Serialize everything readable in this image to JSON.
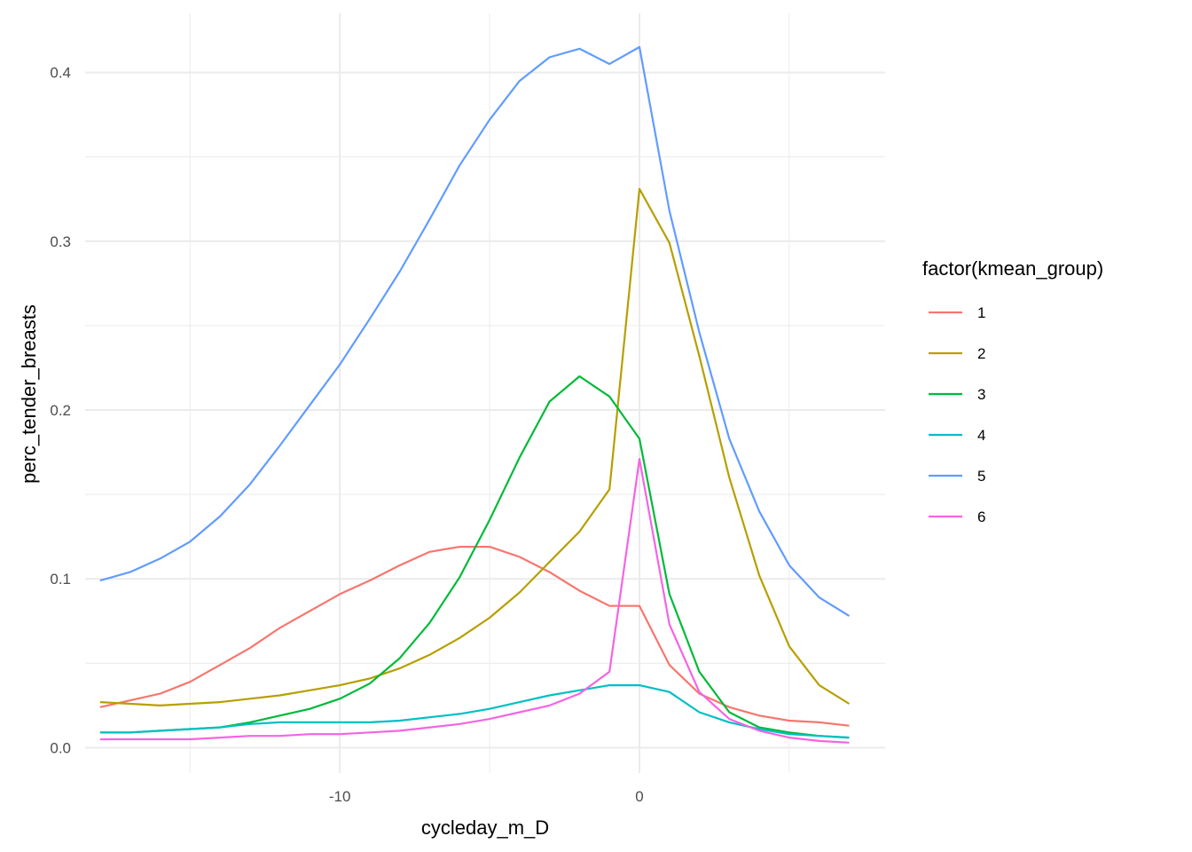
{
  "chart_data": {
    "type": "line",
    "title": "",
    "xlabel": "cycleday_m_D",
    "ylabel": "perc_tender_breasts",
    "xlim": [
      -18.5,
      8.2
    ],
    "ylim": [
      -0.015,
      0.435
    ],
    "x_ticks": [
      -10,
      0
    ],
    "x_tick_labels": [
      "-10",
      "0"
    ],
    "x_minor_ticks": [
      -15,
      -5,
      5
    ],
    "y_ticks": [
      0.0,
      0.1,
      0.2,
      0.3,
      0.4
    ],
    "y_tick_labels": [
      "0.0",
      "0.1",
      "0.2",
      "0.3",
      "0.4"
    ],
    "y_minor_ticks": [
      0.05,
      0.15,
      0.25,
      0.35
    ],
    "grid": true,
    "legend": {
      "title": "factor(kmean_group)",
      "position": "right"
    },
    "x": [
      -18,
      -17,
      -16,
      -15,
      -14,
      -13,
      -12,
      -11,
      -10,
      -9,
      -8,
      -7,
      -6,
      -5,
      -4,
      -3,
      -2,
      -1,
      0,
      1,
      2,
      3,
      4,
      5,
      6,
      7
    ],
    "series": [
      {
        "name": "1",
        "color": "#F8766D",
        "values": [
          0.024,
          0.028,
          0.032,
          0.039,
          0.049,
          0.059,
          0.071,
          0.081,
          0.091,
          0.099,
          0.108,
          0.116,
          0.119,
          0.119,
          0.113,
          0.104,
          0.093,
          0.084,
          0.084,
          0.049,
          0.032,
          0.024,
          0.019,
          0.016,
          0.015,
          0.013
        ]
      },
      {
        "name": "2",
        "color": "#B79F00",
        "values": [
          0.027,
          0.026,
          0.025,
          0.026,
          0.027,
          0.029,
          0.031,
          0.034,
          0.037,
          0.041,
          0.047,
          0.055,
          0.065,
          0.077,
          0.092,
          0.11,
          0.128,
          0.153,
          0.331,
          0.299,
          0.232,
          0.16,
          0.102,
          0.06,
          0.037,
          0.026
        ]
      },
      {
        "name": "3",
        "color": "#00BA38",
        "values": [
          0.009,
          0.009,
          0.01,
          0.011,
          0.012,
          0.015,
          0.019,
          0.023,
          0.029,
          0.038,
          0.053,
          0.074,
          0.101,
          0.135,
          0.172,
          0.205,
          0.22,
          0.208,
          0.183,
          0.091,
          0.045,
          0.021,
          0.012,
          0.009,
          0.007,
          0.006
        ]
      },
      {
        "name": "4",
        "color": "#00BFC4",
        "values": [
          0.009,
          0.009,
          0.01,
          0.011,
          0.012,
          0.014,
          0.015,
          0.015,
          0.015,
          0.015,
          0.016,
          0.018,
          0.02,
          0.023,
          0.027,
          0.031,
          0.034,
          0.037,
          0.037,
          0.033,
          0.021,
          0.015,
          0.011,
          0.008,
          0.007,
          0.006
        ]
      },
      {
        "name": "5",
        "color": "#619CFF",
        "values": [
          0.099,
          0.104,
          0.112,
          0.122,
          0.137,
          0.156,
          0.179,
          0.203,
          0.227,
          0.254,
          0.282,
          0.313,
          0.345,
          0.372,
          0.395,
          0.409,
          0.414,
          0.405,
          0.415,
          0.318,
          0.246,
          0.183,
          0.14,
          0.108,
          0.089,
          0.078
        ]
      },
      {
        "name": "6",
        "color": "#F564E3",
        "values": [
          0.005,
          0.005,
          0.005,
          0.005,
          0.006,
          0.007,
          0.007,
          0.008,
          0.008,
          0.009,
          0.01,
          0.012,
          0.014,
          0.017,
          0.021,
          0.025,
          0.032,
          0.045,
          0.171,
          0.073,
          0.033,
          0.017,
          0.01,
          0.006,
          0.004,
          0.003
        ]
      }
    ]
  }
}
